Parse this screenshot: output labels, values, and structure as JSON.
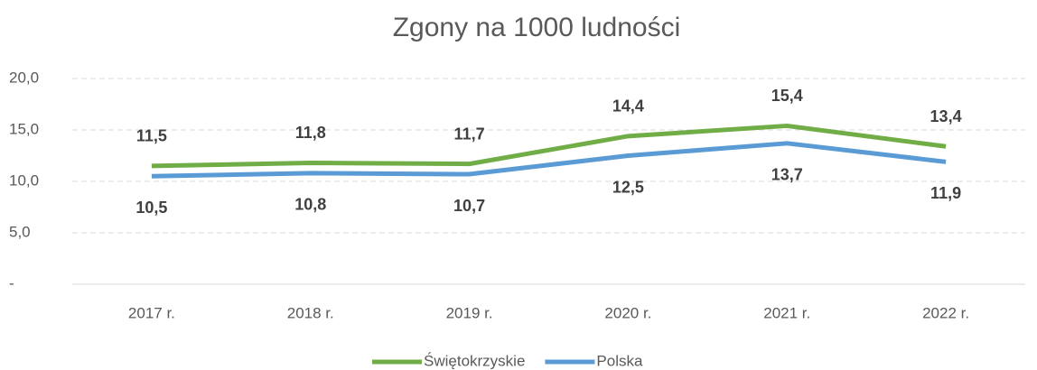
{
  "chart_data": {
    "type": "line",
    "title": "Zgony na 1000 ludności",
    "categories": [
      "2017 r.",
      "2018 r.",
      "2019 r.",
      "2020 r.",
      "2021 r.",
      "2022 r."
    ],
    "series": [
      {
        "name": "Świętokrzyskie",
        "color": "#70ad47",
        "values": [
          11.5,
          11.8,
          11.7,
          14.4,
          15.4,
          13.4
        ],
        "value_labels": [
          "11,5",
          "11,8",
          "11,7",
          "14,4",
          "15,4",
          "13,4"
        ]
      },
      {
        "name": "Polska",
        "color": "#5b9bd5",
        "values": [
          10.5,
          10.8,
          10.7,
          12.5,
          13.7,
          11.9
        ],
        "value_labels": [
          "10,5",
          "10,8",
          "10,7",
          "12,5",
          "13,7",
          "11,9"
        ]
      }
    ],
    "ylim": [
      0,
      20
    ],
    "yticks": [
      {
        "value": 0,
        "label": "-"
      },
      {
        "value": 5,
        "label": "5,0"
      },
      {
        "value": 10,
        "label": "10,0"
      },
      {
        "value": 15,
        "label": "15,0"
      },
      {
        "value": 20,
        "label": "20,0"
      }
    ],
    "grid": true,
    "legend": "bottom"
  }
}
